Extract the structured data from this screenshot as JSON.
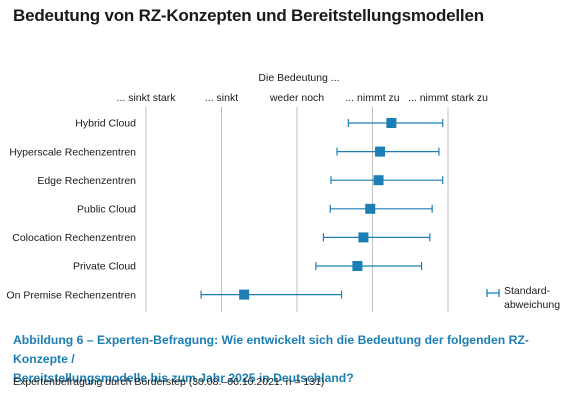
{
  "title": "Bedeutung von RZ-Konzepten und Bereitstellungsmodellen",
  "caption": {
    "line1": "Abbildung 6 – Experten-Befragung: Wie entwickelt sich die Bedeutung der folgenden RZ-Konzepte /",
    "line2": "Bereitstellungsmodelle bis zum Jahr 2025 in Deutschland?"
  },
  "source": "Expertenbefragung durch Borderstep (30.08.–06.10.2021: n = 131)",
  "colors": {
    "accent": "#1b7fb5",
    "grid": "#bfbfbf",
    "text": "#1a1a1a"
  },
  "chart_data": {
    "type": "scatter",
    "axis_title": "Die Bedeutung ...",
    "scale_labels": [
      "... sinkt stark",
      "... sinkt",
      "weder noch",
      "... nimmt zu",
      "... nimmt stark zu"
    ],
    "xlim": [
      1,
      5
    ],
    "grid": true,
    "categories": [
      "Hybrid Cloud",
      "Hyperscale Rechenzentren",
      "Edge Rechenzentren",
      "Public Cloud",
      "Colocation Rechenzentren",
      "Private Cloud",
      "On Premise Rechenzentren"
    ],
    "means": [
      4.25,
      4.1,
      4.08,
      3.97,
      3.88,
      3.8,
      2.3
    ],
    "lower": [
      3.68,
      3.53,
      3.45,
      3.44,
      3.35,
      3.25,
      1.73
    ],
    "upper": [
      4.93,
      4.88,
      4.93,
      4.79,
      4.76,
      4.65,
      3.59
    ],
    "legend": {
      "label_line1": "Standard-",
      "label_line2": "abweichung",
      "position": "bottom-right"
    }
  }
}
